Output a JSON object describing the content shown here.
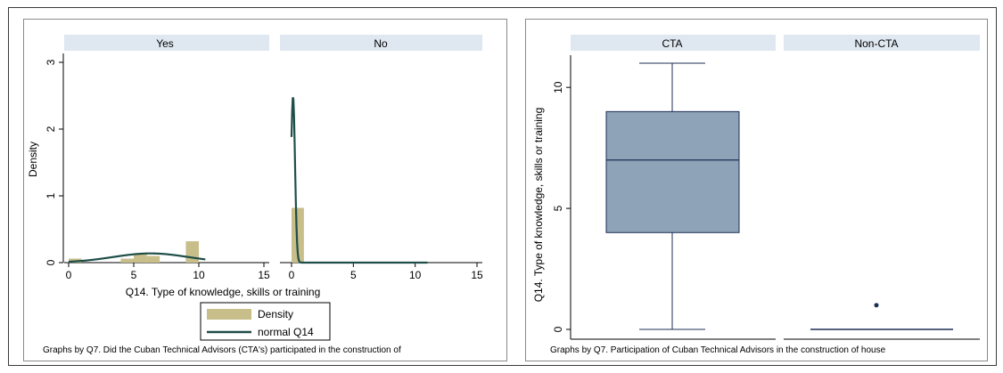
{
  "colors": {
    "histogram_fill": "#c8be8a",
    "normal_line": "#1f4e48",
    "box_fill": "#8ea2b8",
    "box_stroke": "#1c2f55",
    "strip_fill": "#dfe7f0",
    "outlier": "#1c2f55"
  },
  "chart_data": [
    {
      "type": "histogram",
      "ylabel": "Density",
      "xlabel": "Q14. Type of knowledge, skills or training",
      "x_range": [
        0,
        15
      ],
      "y_range": [
        0,
        3
      ],
      "x_ticks": [
        "0",
        "5",
        "10",
        "15"
      ],
      "y_ticks": [
        "0",
        "1",
        "2",
        "3"
      ],
      "facets": [
        {
          "label": "Yes",
          "bins": [
            {
              "x0": 0,
              "x1": 1,
              "density": 0.06
            },
            {
              "x0": 4,
              "x1": 5,
              "density": 0.06
            },
            {
              "x0": 5,
              "x1": 6,
              "density": 0.12
            },
            {
              "x0": 6,
              "x1": 7,
              "density": 0.1
            },
            {
              "x0": 9,
              "x1": 10,
              "density": 0.32
            }
          ],
          "normal": {
            "mean": 6.3,
            "sd": 2.9,
            "x_range": [
              0,
              10.5
            ]
          }
        },
        {
          "label": "No",
          "bins": [
            {
              "x0": 0,
              "x1": 1,
              "density": 0.82
            }
          ],
          "normal": {
            "mean": 0.12,
            "sd": 0.16,
            "x_range": [
              0,
              11
            ]
          }
        }
      ],
      "legend": [
        {
          "label": "Density",
          "kind": "bar"
        },
        {
          "label": "normal Q14",
          "kind": "line"
        }
      ],
      "note": "Graphs by Q7. Did the Cuban Technical Advisors (CTA's) participated in the construction of"
    },
    {
      "type": "box",
      "ylabel": "Q14. Type of knowledge, skills or training",
      "y_range": [
        0,
        11
      ],
      "y_ticks": [
        "0",
        "5",
        "10"
      ],
      "facets": [
        {
          "label": "CTA",
          "min": 0,
          "q1": 4,
          "median": 7,
          "q3": 9,
          "max": 11,
          "outliers": []
        },
        {
          "label": "Non-CTA",
          "min": 0,
          "q1": 0,
          "median": 0,
          "q3": 0,
          "max": 0,
          "outliers": [
            1
          ]
        }
      ],
      "note": "Graphs by Q7. Participation of Cuban Technical Advisors in the construction of house"
    }
  ]
}
